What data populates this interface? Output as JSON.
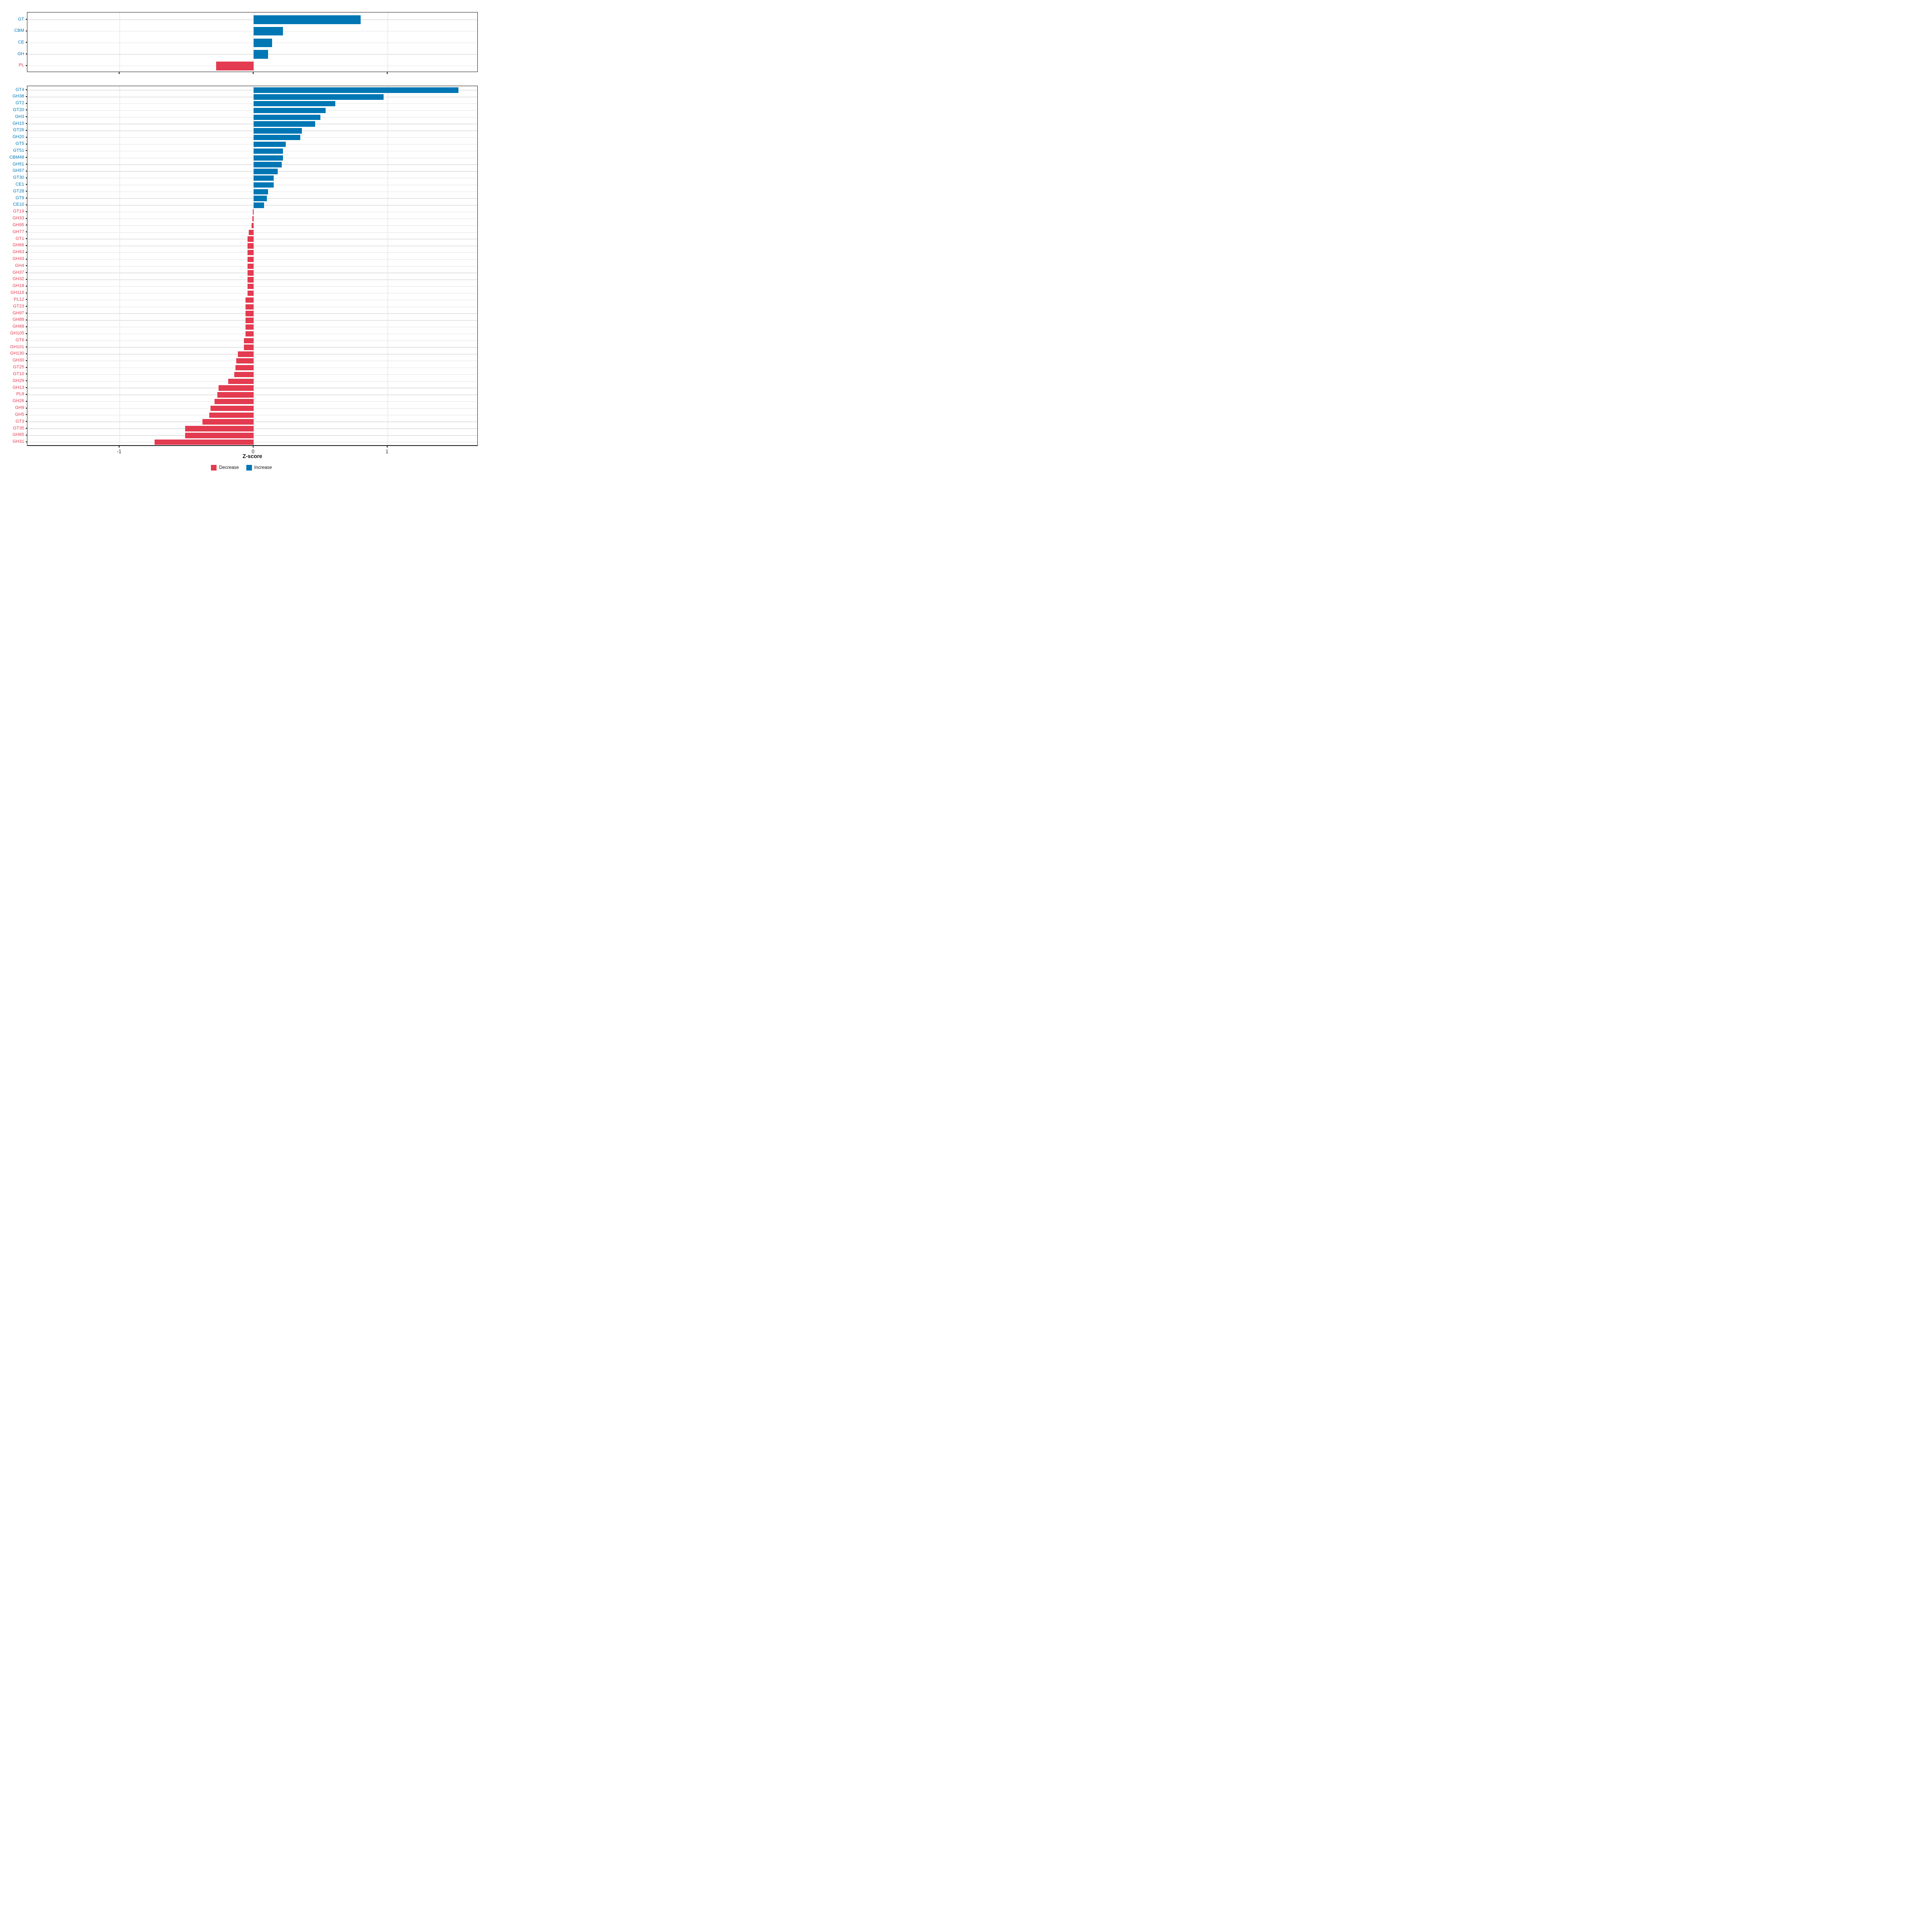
{
  "figure": {
    "kind": "two-panel horizontal bar chart of CAZyme Z-scores",
    "background": "#ffffff"
  },
  "colors": {
    "increase": "#0077b4",
    "decrease": "#e33b50",
    "grid": "#e3e3e3",
    "axis": "#1a1a1a"
  },
  "x_axis": {
    "label": "Z-score",
    "ticks": [
      -1,
      0,
      1
    ],
    "tick_labels": [
      "-1",
      "0",
      "1"
    ],
    "xlim": [
      -1.69,
      1.68
    ]
  },
  "legend": [
    {
      "label": "Decrease",
      "color": "#e33b50"
    },
    {
      "label": "Increase",
      "color": "#0077b4"
    }
  ],
  "chart_data": [
    {
      "panel": "class-level",
      "type": "bar",
      "orientation": "horizontal",
      "xlabel": "Z-score",
      "xlim": [
        -1.69,
        1.68
      ],
      "grid": true,
      "categories": [
        "GT",
        "CBM",
        "CE",
        "GH",
        "PL"
      ],
      "values": [
        0.8,
        0.22,
        0.14,
        0.11,
        -0.28
      ]
    },
    {
      "panel": "family-level",
      "type": "bar",
      "orientation": "horizontal",
      "xlabel": "Z-score",
      "xlim": [
        -1.69,
        1.68
      ],
      "grid": true,
      "categories": [
        "GT4",
        "GH38",
        "GT2",
        "GT20",
        "GH3",
        "GH15",
        "GT26",
        "GH20",
        "GT5",
        "GT51",
        "CBM48",
        "GH51",
        "GH57",
        "GT30",
        "CE1",
        "GT28",
        "GT9",
        "CE10",
        "GT19",
        "GH33",
        "GH95",
        "GH77",
        "GT1",
        "GH66",
        "GH63",
        "GH43",
        "GH4",
        "GH37",
        "GH32",
        "GH18",
        "GH116",
        "PL12",
        "GT23",
        "GH97",
        "GH88",
        "GH68",
        "GH105",
        "GT6",
        "GH101",
        "GH130",
        "GH30",
        "GT25",
        "GT10",
        "GH29",
        "GH13",
        "PL8",
        "GH26",
        "GH9",
        "GH5",
        "GT3",
        "GT35",
        "GH65",
        "GH31"
      ],
      "values": [
        1.53,
        0.97,
        0.61,
        0.54,
        0.5,
        0.46,
        0.36,
        0.35,
        0.24,
        0.22,
        0.22,
        0.21,
        0.18,
        0.15,
        0.15,
        0.11,
        0.1,
        0.08,
        -0.004,
        -0.008,
        -0.013,
        -0.035,
        -0.043,
        -0.043,
        -0.043,
        -0.043,
        -0.043,
        -0.043,
        -0.043,
        -0.043,
        -0.043,
        -0.059,
        -0.059,
        -0.06,
        -0.06,
        -0.06,
        -0.06,
        -0.071,
        -0.072,
        -0.117,
        -0.127,
        -0.134,
        -0.144,
        -0.19,
        -0.26,
        -0.27,
        -0.29,
        -0.32,
        -0.33,
        -0.38,
        -0.51,
        -0.51,
        -0.74
      ]
    }
  ]
}
